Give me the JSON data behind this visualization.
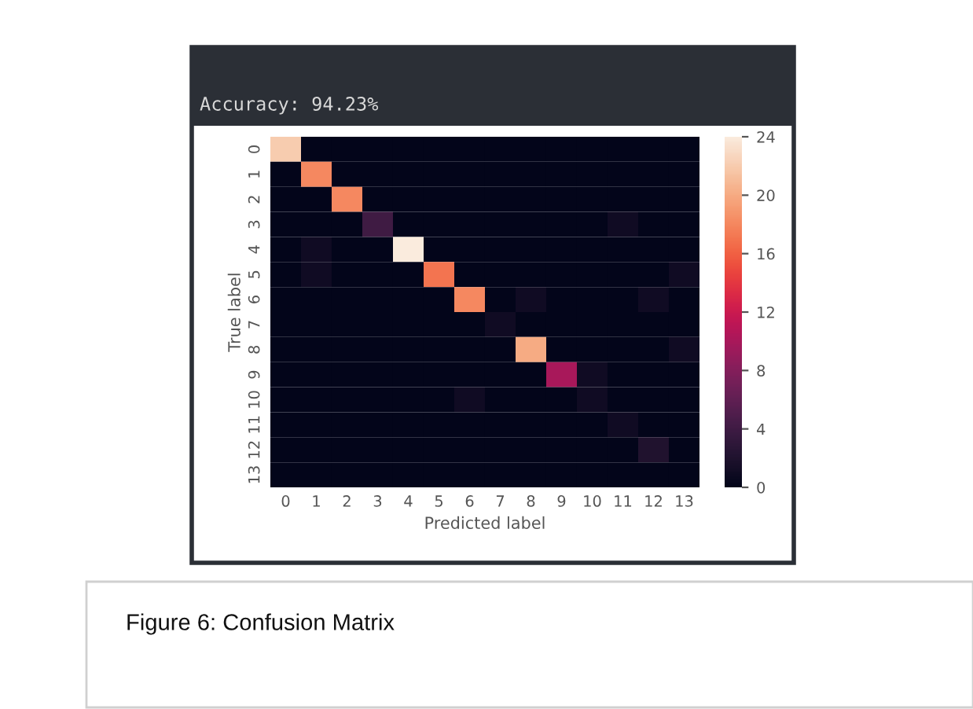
{
  "chart_data": {
    "type": "heatmap",
    "title": "Accuracy: 94.23%",
    "xlabel": "Predicted label",
    "ylabel": "True label",
    "categories": [
      "0",
      "1",
      "2",
      "3",
      "4",
      "5",
      "6",
      "7",
      "8",
      "9",
      "10",
      "11",
      "12",
      "13"
    ],
    "y_categories": [
      "0",
      "1",
      "2",
      "3",
      "4",
      "5",
      "6",
      "7",
      "8",
      "9",
      "10",
      "11",
      "12",
      "13"
    ],
    "cells": [
      [
        22,
        0,
        0,
        0,
        0,
        0,
        0,
        0,
        0,
        0,
        0,
        0,
        0,
        0
      ],
      [
        0,
        18,
        0,
        0,
        0,
        0,
        0,
        0,
        0,
        0,
        0,
        0,
        0,
        0
      ],
      [
        0,
        0,
        18,
        0,
        0,
        0,
        0,
        0,
        0,
        0,
        0,
        0,
        0,
        0
      ],
      [
        0,
        0,
        0,
        4,
        0,
        0,
        0,
        0,
        0,
        0,
        0,
        1,
        0,
        0
      ],
      [
        0,
        1,
        0,
        0,
        24,
        0,
        0,
        0,
        0,
        0,
        0,
        0,
        0,
        0
      ],
      [
        0,
        1,
        0,
        0,
        0,
        17,
        0,
        0,
        0,
        0,
        0,
        0,
        0,
        1
      ],
      [
        0,
        0,
        0,
        0,
        0,
        0,
        18,
        0,
        1,
        0,
        0,
        0,
        1,
        0
      ],
      [
        0,
        0,
        0,
        0,
        0,
        0,
        0,
        1,
        0,
        0,
        0,
        0,
        0,
        0
      ],
      [
        0,
        0,
        0,
        0,
        0,
        0,
        0,
        0,
        20,
        0,
        0,
        0,
        0,
        1
      ],
      [
        0,
        0,
        0,
        0,
        0,
        0,
        0,
        0,
        0,
        10,
        1,
        0,
        0,
        0
      ],
      [
        0,
        0,
        0,
        0,
        0,
        0,
        1,
        0,
        0,
        0,
        1,
        0,
        0,
        0
      ],
      [
        0,
        0,
        0,
        0,
        0,
        0,
        0,
        0,
        0,
        0,
        0,
        1,
        0,
        0
      ],
      [
        0,
        0,
        0,
        0,
        0,
        0,
        0,
        0,
        0,
        0,
        0,
        0,
        2,
        0
      ],
      [
        0,
        0,
        0,
        0,
        0,
        0,
        0,
        0,
        0,
        0,
        0,
        0,
        0,
        0
      ]
    ],
    "clim": [
      0,
      24
    ],
    "cticks": [
      0,
      4,
      8,
      12,
      16,
      20,
      24
    ],
    "annotations": [
      "Figure 6: Confusion Matrix"
    ]
  }
}
